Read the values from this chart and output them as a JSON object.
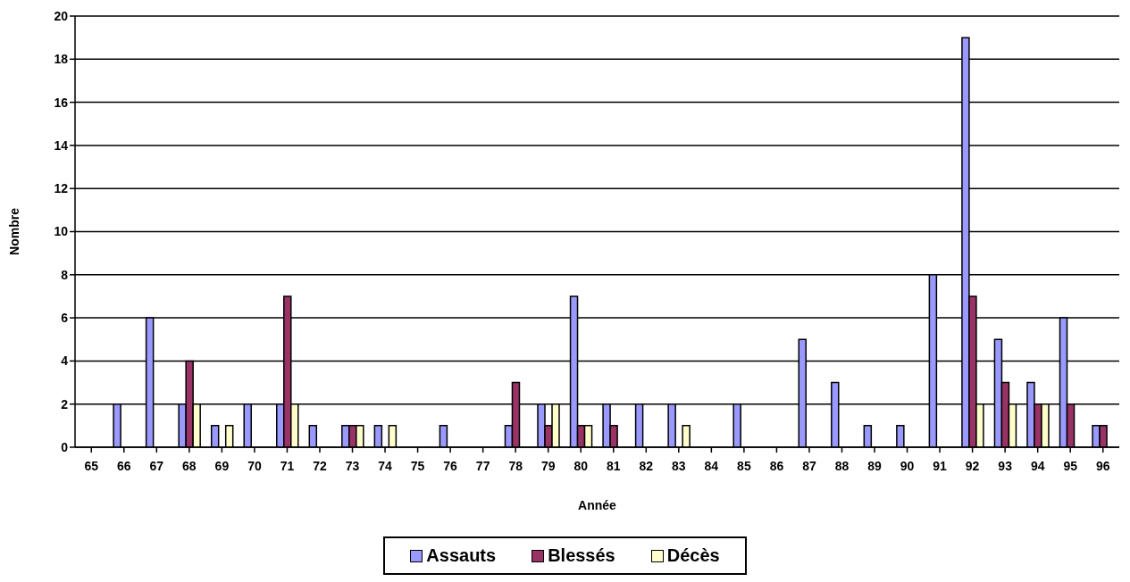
{
  "chart_data": {
    "type": "bar",
    "xlabel": "Année",
    "ylabel": "Nombre",
    "categories": [
      "65",
      "66",
      "67",
      "68",
      "69",
      "70",
      "71",
      "72",
      "73",
      "74",
      "75",
      "76",
      "77",
      "78",
      "79",
      "80",
      "81",
      "82",
      "83",
      "84",
      "85",
      "86",
      "87",
      "88",
      "89",
      "90",
      "91",
      "92",
      "93",
      "94",
      "95",
      "96"
    ],
    "series": [
      {
        "name": "Assauts",
        "color": "#9999ff",
        "values": [
          0,
          2,
          6,
          2,
          1,
          2,
          2,
          1,
          1,
          1,
          0,
          1,
          0,
          1,
          2,
          7,
          2,
          2,
          2,
          0,
          2,
          0,
          5,
          3,
          1,
          1,
          8,
          19,
          5,
          3,
          6,
          1
        ]
      },
      {
        "name": "Blessés",
        "color": "#993366",
        "values": [
          0,
          0,
          0,
          4,
          0,
          0,
          7,
          0,
          1,
          0,
          0,
          0,
          0,
          3,
          1,
          1,
          1,
          0,
          0,
          0,
          0,
          0,
          0,
          0,
          0,
          0,
          0,
          7,
          3,
          2,
          2,
          1
        ]
      },
      {
        "name": "Décès",
        "color": "#ffffcc",
        "values": [
          0,
          0,
          0,
          2,
          1,
          0,
          2,
          0,
          1,
          1,
          0,
          0,
          0,
          0,
          2,
          1,
          0,
          0,
          1,
          0,
          0,
          0,
          0,
          0,
          0,
          0,
          0,
          2,
          2,
          2,
          0,
          0
        ]
      }
    ],
    "ylim": [
      0,
      20
    ],
    "yticks": [
      0,
      2,
      4,
      6,
      8,
      10,
      12,
      14,
      16,
      18,
      20
    ],
    "grid": "y",
    "legend": "bottom"
  }
}
